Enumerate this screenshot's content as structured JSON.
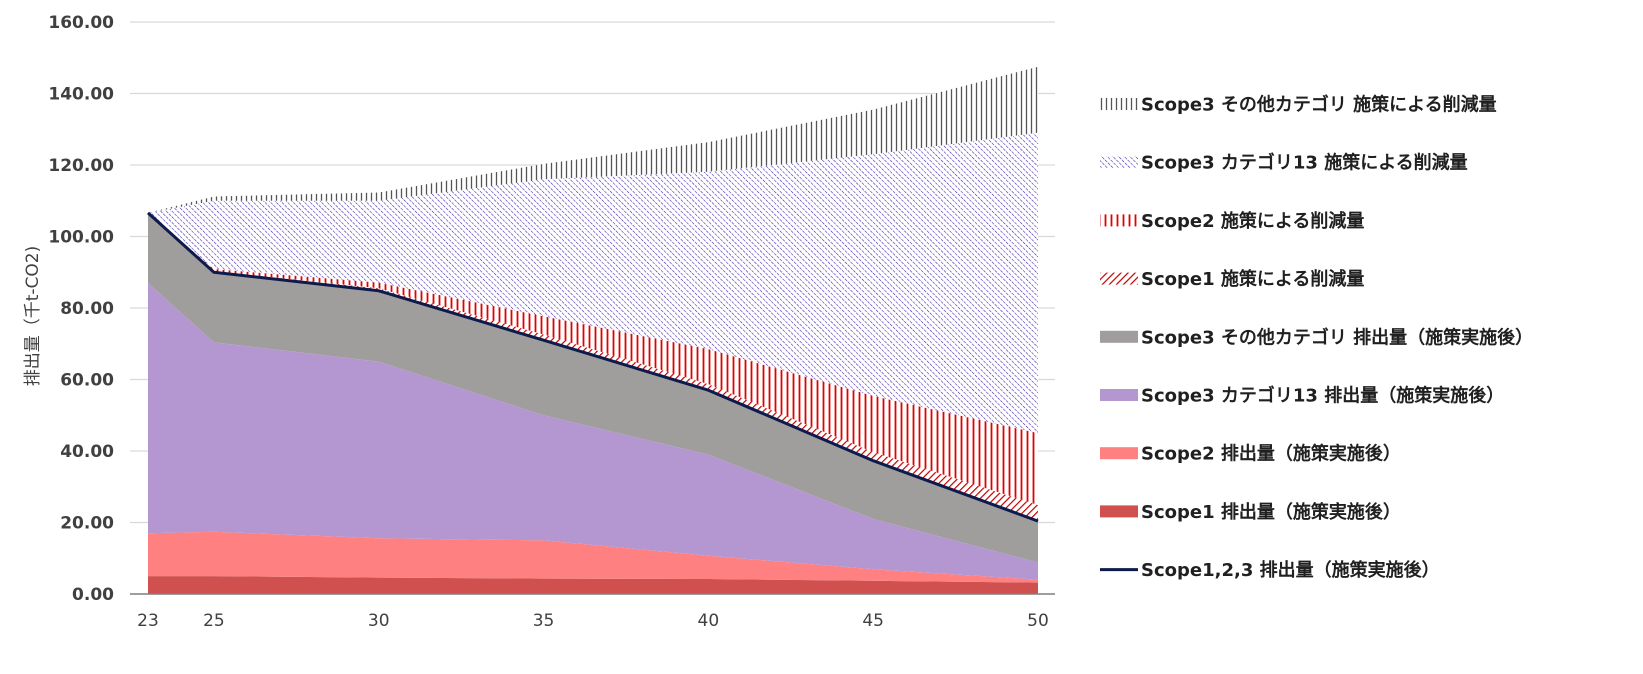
{
  "chart_data": {
    "type": "area",
    "ylabel": "排出量（千t-CO2)",
    "xlabel": "",
    "ylim": [
      0,
      160
    ],
    "y_ticks": [
      "0.00",
      "20.00",
      "40.00",
      "60.00",
      "80.00",
      "100.00",
      "120.00",
      "140.00",
      "160.00"
    ],
    "x": [
      23,
      25,
      30,
      35,
      40,
      45,
      50
    ],
    "x_tick_labels": [
      "23",
      "25",
      "30",
      "35",
      "40",
      "45",
      "50"
    ],
    "grid": true,
    "legend_position": "right",
    "stacked": true,
    "series": [
      {
        "name": "Scope1 排出量（施策実施後）",
        "kind": "area",
        "color": "#d05050",
        "values": [
          5,
          5,
          4.6,
          4.3,
          4.2,
          3.7,
          3.2
        ]
      },
      {
        "name": "Scope2 排出量（施策実施後）",
        "kind": "area",
        "color": "#ff8080",
        "values": [
          12,
          12.4,
          11,
          10.7,
          6.5,
          3.2,
          0.8
        ]
      },
      {
        "name": "Scope3 カテゴリ13 排出量（施策実施後）",
        "kind": "area",
        "color": "#b497d0",
        "values": [
          70,
          53,
          49.4,
          35,
          28.3,
          14.1,
          4.8
        ]
      },
      {
        "name": "Scope3 その他カテゴリ 排出量（施策実施後）",
        "kind": "area",
        "color": "#a09d9d",
        "values": [
          19.6,
          19.6,
          19.8,
          21,
          18,
          16.3,
          11.6
        ]
      },
      {
        "name": "Scope1 施策による削減量",
        "kind": "pattern",
        "pattern": "diag-red",
        "color": "#c00000",
        "values": [
          0,
          0.3,
          0.7,
          1.6,
          1.7,
          2.4,
          4.5
        ]
      },
      {
        "name": "Scope2 施策による削減量",
        "kind": "pattern",
        "pattern": "vert-red",
        "color": "#e00000",
        "values": [
          0,
          0.6,
          1.6,
          5.1,
          9.8,
          15.7,
          20.1
        ]
      },
      {
        "name": "Scope3 カテゴリ13 施策による削減量",
        "kind": "pattern",
        "pattern": "diag-purple",
        "color": "#3a1aa8",
        "values": [
          0,
          19.1,
          22.9,
          38.3,
          49.6,
          67.6,
          84.0
        ]
      },
      {
        "name": "Scope3 その他カテゴリ 施策による削減量",
        "kind": "pattern",
        "pattern": "vert-gray",
        "color": "#555555",
        "values": [
          0,
          1.2,
          2.3,
          4.3,
          8.3,
          12.5,
          18.5
        ]
      },
      {
        "name": "Scope1,2,3 排出量（施策実施後）",
        "kind": "line",
        "color": "#0d1b4c",
        "values": [
          106.6,
          90,
          84.8,
          71,
          57,
          37.3,
          20.4
        ]
      }
    ],
    "legend_order": [
      7,
      6,
      5,
      4,
      3,
      2,
      1,
      0,
      8
    ]
  }
}
